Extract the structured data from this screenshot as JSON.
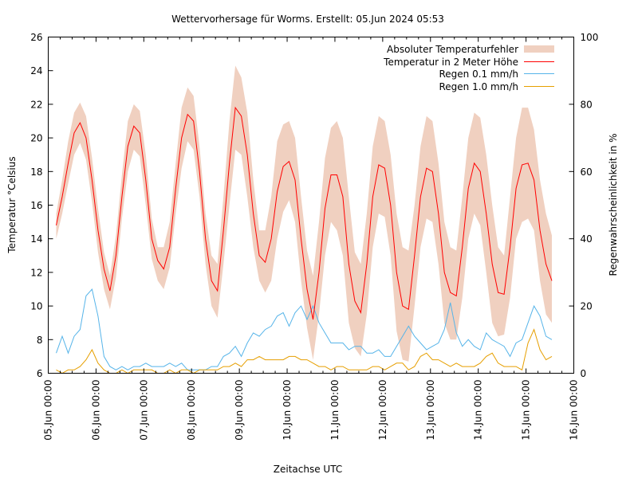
{
  "chart_data": {
    "type": "line",
    "title": "Wettervorhersage für Worms. Erstellt: 05.Jun 2024 05:53",
    "xlabel": "Zeitachse UTC",
    "ylabel": "Temperatur °Celsius",
    "y2label": "Regenwahrscheinlichkeit in %",
    "x_unit": "hours since 05.Jun 00:00",
    "xlim": [
      0,
      264
    ],
    "ylim": [
      6,
      26
    ],
    "y2lim": [
      0,
      100
    ],
    "grid": false,
    "legend_position": "top-right",
    "x_ticks": [
      "05.Jun 00:00",
      "06.Jun 00:00",
      "07.Jun 00:00",
      "08.Jun 00:00",
      "09.Jun 00:00",
      "10.Jun 00:00",
      "11.Jun 00:00",
      "12.Jun 00:00",
      "13.Jun 00:00",
      "14.Jun 00:00",
      "15.Jun 00:00",
      "16.Jun 00:00"
    ],
    "y_ticks": [
      "6",
      "8",
      "10",
      "12",
      "14",
      "16",
      "18",
      "20",
      "22",
      "24",
      "26"
    ],
    "y2_ticks": [
      "0",
      "20",
      "40",
      "60",
      "80",
      "100"
    ],
    "colors": {
      "error_band": "#f0d0c0",
      "temperature": "#ff0000",
      "rain01": "#56b4e9",
      "rain10": "#e69f00"
    },
    "legend": [
      {
        "label": "Absoluter Temperaturfehler",
        "kind": "band",
        "series": "error"
      },
      {
        "label": "Temperatur in 2 Meter Höhe",
        "kind": "line",
        "series": "temperature"
      },
      {
        "label": "Regen 0.1 mm/h",
        "kind": "line",
        "series": "rain01"
      },
      {
        "label": "Regen 1.0 mm/h",
        "kind": "line",
        "series": "rain10"
      }
    ],
    "x": [
      4,
      7,
      10,
      13,
      16,
      19,
      22,
      25,
      28,
      31,
      34,
      37,
      40,
      43,
      46,
      49,
      52,
      55,
      58,
      61,
      64,
      67,
      70,
      73,
      76,
      79,
      82,
      85,
      88,
      91,
      94,
      97,
      100,
      103,
      106,
      109,
      112,
      115,
      118,
      121,
      124,
      127,
      130,
      133,
      136,
      139,
      142,
      145,
      148,
      151,
      154,
      157,
      160,
      163,
      166,
      169,
      172,
      175,
      178,
      181,
      184,
      187,
      190,
      193,
      196,
      199,
      202,
      205,
      208,
      211,
      214,
      217,
      220,
      223,
      226,
      229,
      232,
      235,
      238,
      241,
      244,
      247,
      250,
      253
    ],
    "series": [
      {
        "name": "Temperatur in 2 Meter Höhe",
        "key": "temperature",
        "axis": "y",
        "values": [
          14.8,
          16.5,
          18.5,
          20.3,
          20.9,
          20.0,
          17.5,
          14.5,
          12.2,
          10.9,
          13.0,
          16.5,
          19.5,
          20.7,
          20.3,
          17.5,
          14.0,
          12.7,
          12.2,
          13.5,
          17.0,
          20.0,
          21.4,
          21.0,
          18.0,
          14.0,
          11.5,
          10.9,
          14.5,
          18.5,
          21.8,
          21.3,
          19.0,
          15.5,
          13.0,
          12.6,
          14.0,
          16.8,
          18.3,
          18.6,
          17.5,
          14.0,
          11.0,
          9.2,
          12.0,
          15.8,
          17.8,
          17.8,
          16.5,
          12.5,
          10.3,
          9.6,
          12.5,
          16.5,
          18.4,
          18.2,
          16.0,
          12.0,
          10.0,
          9.8,
          13.0,
          16.5,
          18.2,
          18.0,
          15.5,
          12.0,
          10.8,
          10.6,
          13.5,
          17.0,
          18.5,
          18.0,
          15.5,
          12.5,
          10.8,
          10.7,
          13.5,
          17.0,
          18.4,
          18.5,
          17.5,
          14.5,
          12.5,
          11.5
        ]
      },
      {
        "name": "Absoluter Temperaturfehler (oben)",
        "key": "error_upper",
        "axis": "y",
        "values": [
          15.5,
          17.5,
          19.8,
          21.5,
          22.1,
          21.3,
          18.8,
          15.8,
          13.2,
          11.8,
          14.2,
          17.8,
          21.0,
          22.0,
          21.6,
          19.0,
          15.2,
          13.5,
          13.5,
          15.0,
          18.5,
          21.8,
          23.0,
          22.5,
          19.5,
          15.5,
          13.0,
          12.5,
          16.5,
          21.0,
          24.3,
          23.6,
          21.5,
          17.5,
          14.5,
          14.5,
          16.5,
          19.8,
          20.8,
          21.0,
          20.0,
          16.5,
          13.3,
          11.8,
          15.0,
          18.8,
          20.6,
          21.0,
          20.0,
          16.5,
          13.2,
          12.5,
          15.5,
          19.5,
          21.3,
          21.0,
          19.0,
          15.5,
          13.5,
          13.3,
          16.0,
          19.5,
          21.3,
          21.0,
          18.5,
          15.0,
          13.5,
          13.3,
          16.5,
          20.0,
          21.5,
          21.2,
          19.0,
          16.0,
          13.5,
          13.0,
          16.5,
          20.0,
          21.8,
          21.8,
          20.5,
          17.5,
          15.5,
          14.2
        ]
      },
      {
        "name": "Absoluter Temperaturfehler (unten)",
        "key": "error_lower",
        "axis": "y",
        "values": [
          14.0,
          15.5,
          17.3,
          19.0,
          19.7,
          18.7,
          16.2,
          13.2,
          11.0,
          9.8,
          11.7,
          15.2,
          18.0,
          19.3,
          18.9,
          16.0,
          12.8,
          11.5,
          11.0,
          12.3,
          15.5,
          18.2,
          19.8,
          19.3,
          16.5,
          12.5,
          10.0,
          9.3,
          12.5,
          16.0,
          19.3,
          19.0,
          16.5,
          13.5,
          11.5,
          10.8,
          11.5,
          14.0,
          15.6,
          16.3,
          15.0,
          11.5,
          8.7,
          6.8,
          9.5,
          13.0,
          15.0,
          14.5,
          13.0,
          9.0,
          7.5,
          7.0,
          9.5,
          13.5,
          15.5,
          15.3,
          13.0,
          8.5,
          6.8,
          6.7,
          10.0,
          13.5,
          15.2,
          15.0,
          12.5,
          9.0,
          8.0,
          8.0,
          10.5,
          14.0,
          15.5,
          14.8,
          12.0,
          9.0,
          8.2,
          8.3,
          10.5,
          14.0,
          15.0,
          15.2,
          14.5,
          11.5,
          9.5,
          9.0
        ]
      },
      {
        "name": "Regen 0.1 mm/h",
        "key": "rain01",
        "axis": "y2",
        "values": [
          6,
          11,
          6,
          11,
          13,
          23,
          25,
          17,
          5,
          2,
          1,
          2,
          1,
          2,
          2,
          3,
          2,
          2,
          2,
          3,
          2,
          3,
          1,
          1,
          1,
          1,
          2,
          2,
          5,
          6,
          8,
          5,
          9,
          12,
          11,
          13,
          14,
          17,
          18,
          14,
          18,
          20,
          16,
          20,
          15,
          12,
          9,
          9,
          9,
          7,
          8,
          8,
          6,
          6,
          7,
          5,
          5,
          8,
          11,
          14,
          11,
          9,
          7,
          8,
          9,
          13,
          21,
          12,
          8,
          10,
          8,
          7,
          12,
          10,
          9,
          8,
          5,
          9,
          10,
          15,
          20,
          17,
          11,
          10
        ]
      },
      {
        "name": "Regen 1.0 mm/h",
        "key": "rain10",
        "axis": "y2",
        "values": [
          1,
          0,
          1,
          1,
          2,
          4,
          7,
          3,
          1,
          0,
          0,
          1,
          0,
          1,
          1,
          1,
          1,
          0,
          0,
          1,
          0,
          1,
          1,
          0,
          1,
          1,
          1,
          1,
          2,
          2,
          3,
          2,
          4,
          4,
          5,
          4,
          4,
          4,
          4,
          5,
          5,
          4,
          4,
          3,
          2,
          2,
          1,
          2,
          2,
          1,
          1,
          1,
          1,
          2,
          2,
          1,
          2,
          3,
          3,
          1,
          2,
          5,
          6,
          4,
          4,
          3,
          2,
          3,
          2,
          2,
          2,
          3,
          5,
          6,
          3,
          2,
          2,
          2,
          1,
          9,
          13,
          7,
          4,
          5
        ]
      }
    ]
  }
}
